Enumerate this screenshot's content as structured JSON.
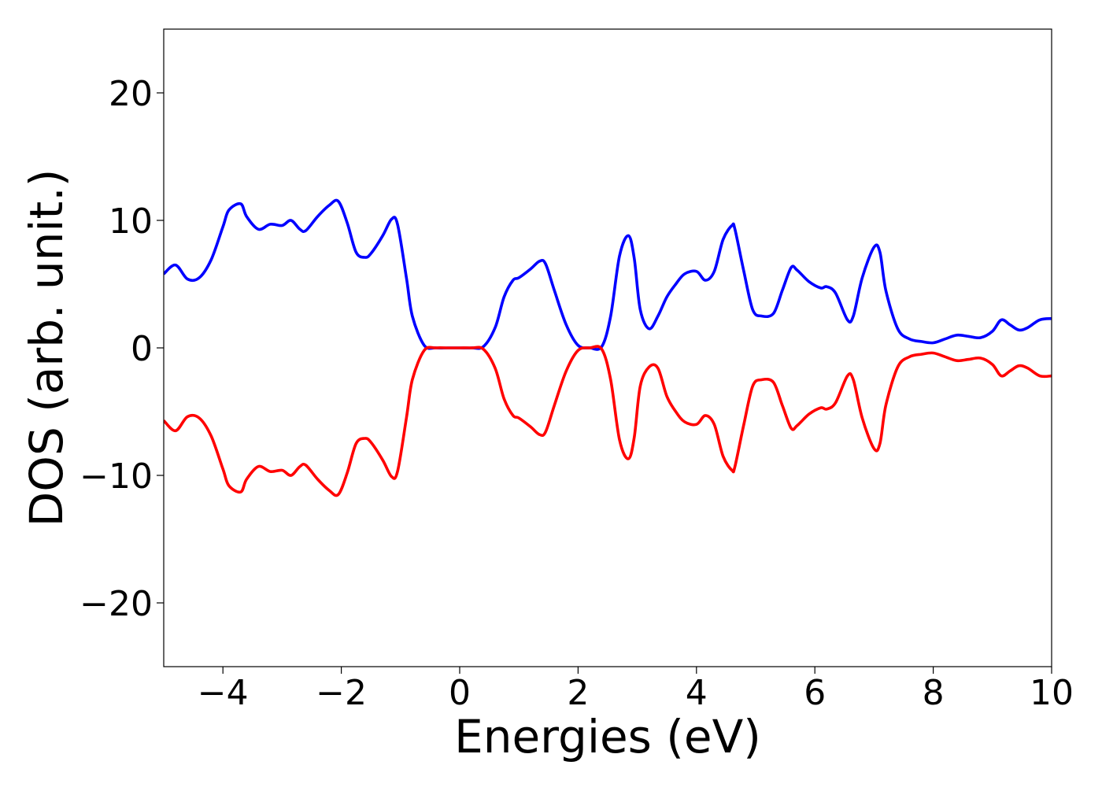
{
  "chart_data": {
    "type": "line",
    "title": "",
    "xlabel": "Energies (eV)",
    "ylabel": "DOS (arb. unit.)",
    "xlim": [
      -5,
      10
    ],
    "ylim": [
      -25,
      25
    ],
    "xticks": [
      -4,
      -2,
      0,
      2,
      4,
      6,
      8,
      10
    ],
    "xtick_labels": [
      "−4",
      "−2",
      "0",
      "2",
      "4",
      "6",
      "8",
      "10"
    ],
    "yticks": [
      -20,
      -10,
      0,
      10,
      20
    ],
    "ytick_labels": [
      "−20",
      "−10",
      "0",
      "10",
      "20"
    ],
    "grid": false,
    "legend": "none",
    "series": [
      {
        "color": "#0000ff",
        "x": [
          -5.0,
          -4.8,
          -4.6,
          -4.4,
          -4.2,
          -4.0,
          -3.9,
          -3.7,
          -3.6,
          -3.4,
          -3.2,
          -3.0,
          -2.85,
          -2.7,
          -2.6,
          -2.4,
          -2.2,
          -2.05,
          -1.9,
          -1.75,
          -1.6,
          -1.5,
          -1.3,
          -1.15,
          -1.05,
          -0.9,
          -0.8,
          -0.6,
          -0.4,
          -0.2,
          0.0,
          0.2,
          0.4,
          0.6,
          0.75,
          0.9,
          1.0,
          1.2,
          1.35,
          1.45,
          1.6,
          1.8,
          2.0,
          2.2,
          2.4,
          2.55,
          2.7,
          2.85,
          2.95,
          3.05,
          3.2,
          3.35,
          3.5,
          3.65,
          3.8,
          4.0,
          4.15,
          4.3,
          4.45,
          4.6,
          4.65,
          4.8,
          4.95,
          5.1,
          5.3,
          5.45,
          5.6,
          5.7,
          5.9,
          6.1,
          6.2,
          6.35,
          6.55,
          6.65,
          6.8,
          7.0,
          7.1,
          7.2,
          7.4,
          7.6,
          7.8,
          8.0,
          8.2,
          8.4,
          8.6,
          8.8,
          9.0,
          9.15,
          9.3,
          9.45,
          9.6,
          9.8,
          10.0
        ],
        "y": [
          5.8,
          6.5,
          5.4,
          5.5,
          6.9,
          9.5,
          10.8,
          11.3,
          10.3,
          9.3,
          9.7,
          9.6,
          10.0,
          9.3,
          9.2,
          10.3,
          11.2,
          11.5,
          9.8,
          7.5,
          7.1,
          7.4,
          8.8,
          10.1,
          9.7,
          5.5,
          2.5,
          0.2,
          0.0,
          0.0,
          0.0,
          0.0,
          0.1,
          1.6,
          4.0,
          5.3,
          5.5,
          6.2,
          6.8,
          6.6,
          4.5,
          1.8,
          0.2,
          0.0,
          0.1,
          2.5,
          7.2,
          8.8,
          7.0,
          3.0,
          1.5,
          2.5,
          4.0,
          5.0,
          5.8,
          6.0,
          5.3,
          6.0,
          8.5,
          9.6,
          9.3,
          6.0,
          3.0,
          2.5,
          2.7,
          4.5,
          6.3,
          6.1,
          5.2,
          4.7,
          4.8,
          4.3,
          2.2,
          2.5,
          5.5,
          7.9,
          7.5,
          4.5,
          1.5,
          0.7,
          0.5,
          0.4,
          0.7,
          1.0,
          0.9,
          0.8,
          1.3,
          2.2,
          1.8,
          1.4,
          1.6,
          2.2,
          2.3
        ]
      },
      {
        "color": "#ff0000",
        "x": [
          -5.0,
          -4.8,
          -4.6,
          -4.4,
          -4.2,
          -4.0,
          -3.9,
          -3.7,
          -3.6,
          -3.4,
          -3.2,
          -3.0,
          -2.85,
          -2.7,
          -2.6,
          -2.4,
          -2.2,
          -2.05,
          -1.9,
          -1.75,
          -1.6,
          -1.5,
          -1.3,
          -1.15,
          -1.05,
          -0.9,
          -0.8,
          -0.6,
          -0.4,
          -0.2,
          0.0,
          0.2,
          0.4,
          0.6,
          0.75,
          0.9,
          1.0,
          1.2,
          1.35,
          1.45,
          1.6,
          1.8,
          2.0,
          2.2,
          2.4,
          2.55,
          2.7,
          2.85,
          2.95,
          3.05,
          3.2,
          3.35,
          3.5,
          3.65,
          3.8,
          4.0,
          4.15,
          4.3,
          4.45,
          4.6,
          4.65,
          4.8,
          4.95,
          5.1,
          5.3,
          5.45,
          5.6,
          5.7,
          5.9,
          6.1,
          6.2,
          6.35,
          6.55,
          6.65,
          6.8,
          7.0,
          7.1,
          7.2,
          7.4,
          7.6,
          7.8,
          8.0,
          8.2,
          8.4,
          8.6,
          8.8,
          9.0,
          9.15,
          9.3,
          9.45,
          9.6,
          9.8,
          10.0
        ],
        "y": [
          -5.7,
          -6.5,
          -5.4,
          -5.5,
          -6.9,
          -9.5,
          -10.8,
          -11.3,
          -10.3,
          -9.3,
          -9.7,
          -9.6,
          -10.0,
          -9.3,
          -9.2,
          -10.3,
          -11.2,
          -11.5,
          -9.8,
          -7.5,
          -7.1,
          -7.4,
          -8.8,
          -10.1,
          -9.7,
          -5.5,
          -2.5,
          -0.2,
          0.0,
          0.0,
          0.0,
          0.0,
          -0.1,
          -1.6,
          -4.0,
          -5.3,
          -5.5,
          -6.2,
          -6.8,
          -6.6,
          -4.5,
          -1.8,
          -0.2,
          0.0,
          -0.1,
          -2.5,
          -7.2,
          -8.7,
          -7.0,
          -3.0,
          -1.5,
          -1.6,
          -3.8,
          -5.0,
          -5.8,
          -6.0,
          -5.3,
          -6.0,
          -8.5,
          -9.6,
          -9.3,
          -6.0,
          -3.0,
          -2.5,
          -2.7,
          -4.5,
          -6.3,
          -6.1,
          -5.2,
          -4.7,
          -4.8,
          -4.3,
          -2.2,
          -2.5,
          -5.5,
          -7.9,
          -7.5,
          -4.5,
          -1.5,
          -0.7,
          -0.5,
          -0.4,
          -0.7,
          -1.0,
          -0.9,
          -0.8,
          -1.3,
          -2.2,
          -1.8,
          -1.4,
          -1.6,
          -2.2,
          -2.2
        ]
      }
    ]
  }
}
